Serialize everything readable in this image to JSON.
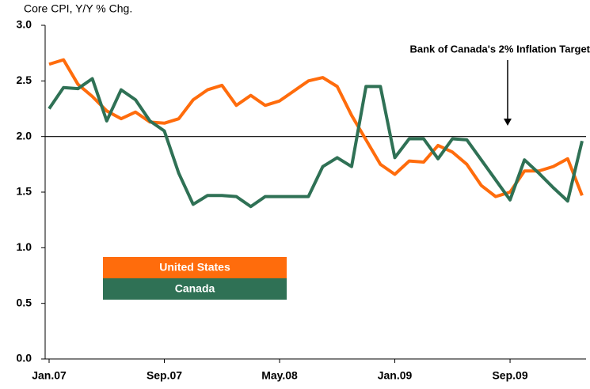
{
  "chart_data": {
    "type": "line",
    "y_axis_label": "Core CPI, Y/Y % Chg.",
    "annotation": "Bank of Canada's 2% Inflation Target",
    "target": 2.0,
    "categories": [
      "Jan.07",
      null,
      null,
      null,
      null,
      null,
      null,
      null,
      "Sep.07",
      null,
      null,
      null,
      null,
      null,
      null,
      null,
      "May.08",
      null,
      null,
      null,
      null,
      null,
      null,
      null,
      "Jan.09",
      null,
      null,
      null,
      null,
      null,
      null,
      null,
      "Sep.09",
      null,
      null,
      null,
      null,
      null
    ],
    "series": [
      {
        "name": "United States",
        "color": "#ff6c0c",
        "values": [
          2.65,
          2.69,
          2.47,
          2.36,
          2.23,
          2.16,
          2.22,
          2.13,
          2.12,
          2.16,
          2.33,
          2.42,
          2.46,
          2.28,
          2.37,
          2.28,
          2.32,
          2.41,
          2.5,
          2.53,
          2.45,
          2.19,
          1.97,
          1.75,
          1.66,
          1.78,
          1.77,
          1.92,
          1.86,
          1.75,
          1.56,
          1.46,
          1.5,
          1.69,
          1.69,
          1.73,
          1.8,
          1.47
        ]
      },
      {
        "name": "Canada",
        "color": "#2f7155",
        "values": [
          2.25,
          2.44,
          2.43,
          2.52,
          2.14,
          2.42,
          2.33,
          2.14,
          2.05,
          1.67,
          1.39,
          1.47,
          1.47,
          1.46,
          1.37,
          1.46,
          1.46,
          1.46,
          1.46,
          1.73,
          1.81,
          1.73,
          2.45,
          2.45,
          1.81,
          1.98,
          1.98,
          1.8,
          1.98,
          1.97,
          1.79,
          1.61,
          1.43,
          1.79,
          1.67,
          1.54,
          1.42,
          1.96
        ]
      }
    ],
    "ylim": [
      0,
      3
    ],
    "yticks": [
      {
        "value": 0,
        "label": "0.0"
      },
      0.5,
      {
        "value": 1,
        "label": "1.0"
      },
      1.5,
      {
        "value": 2,
        "label": "2.0"
      },
      2.5,
      {
        "value": 3,
        "label": "3.0"
      }
    ]
  }
}
